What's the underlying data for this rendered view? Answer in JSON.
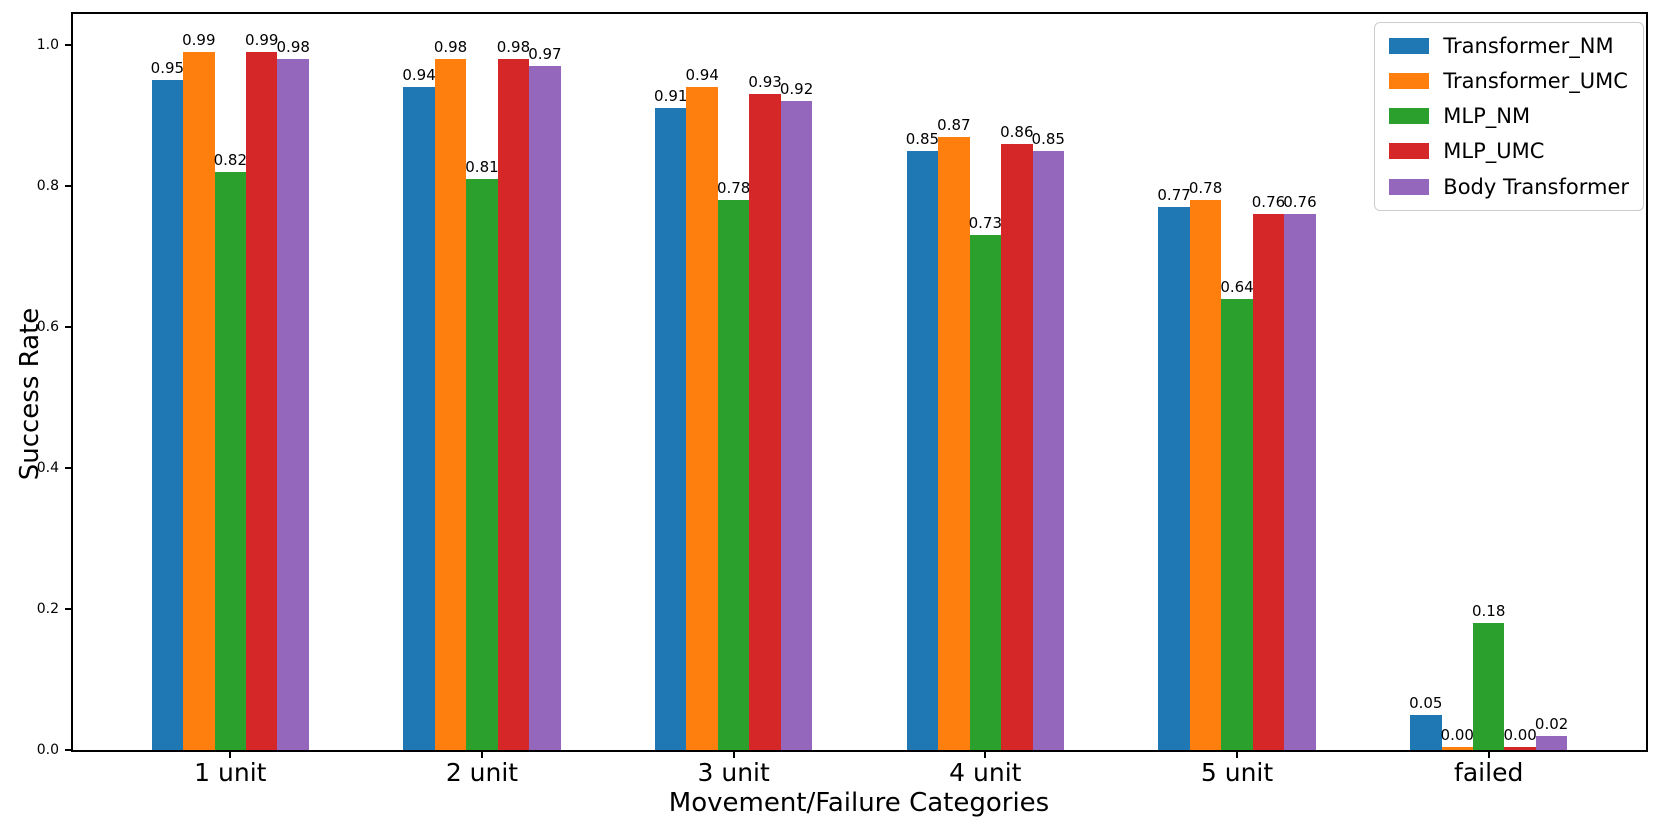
{
  "chart_data": {
    "type": "bar",
    "title": "",
    "xlabel": "Movement/Failure Categories",
    "ylabel": "Success Rate",
    "categories": [
      "1 unit",
      "2 unit",
      "3 unit",
      "4 unit",
      "5 unit",
      "failed"
    ],
    "series": [
      {
        "name": "Transformer_NM",
        "color": "#1f77b4",
        "values": [
          0.95,
          0.94,
          0.91,
          0.85,
          0.77,
          0.05
        ]
      },
      {
        "name": "Transformer_UMC",
        "color": "#ff7f0e",
        "values": [
          0.99,
          0.98,
          0.94,
          0.87,
          0.78,
          0.0
        ]
      },
      {
        "name": "MLP_NM",
        "color": "#2ca02c",
        "values": [
          0.82,
          0.81,
          0.78,
          0.73,
          0.64,
          0.18
        ]
      },
      {
        "name": "MLP_UMC",
        "color": "#d62728",
        "values": [
          0.99,
          0.98,
          0.93,
          0.86,
          0.76,
          0.0
        ]
      },
      {
        "name": "Body Transformer",
        "color": "#9467bd",
        "values": [
          0.98,
          0.97,
          0.92,
          0.85,
          0.76,
          0.02
        ]
      }
    ],
    "y_ticks": [
      "0.0",
      "0.2",
      "0.4",
      "0.6",
      "0.8",
      "1.0"
    ],
    "ylim": [
      0,
      1.044
    ],
    "xlim_units": 6.25,
    "first_center_offset": 0.625,
    "bar_width_units": 0.125,
    "bar_label_decimals": 2,
    "legend_position": "upper right",
    "grid": false,
    "spine_color": "#000000",
    "background_color": "#ffffff"
  }
}
